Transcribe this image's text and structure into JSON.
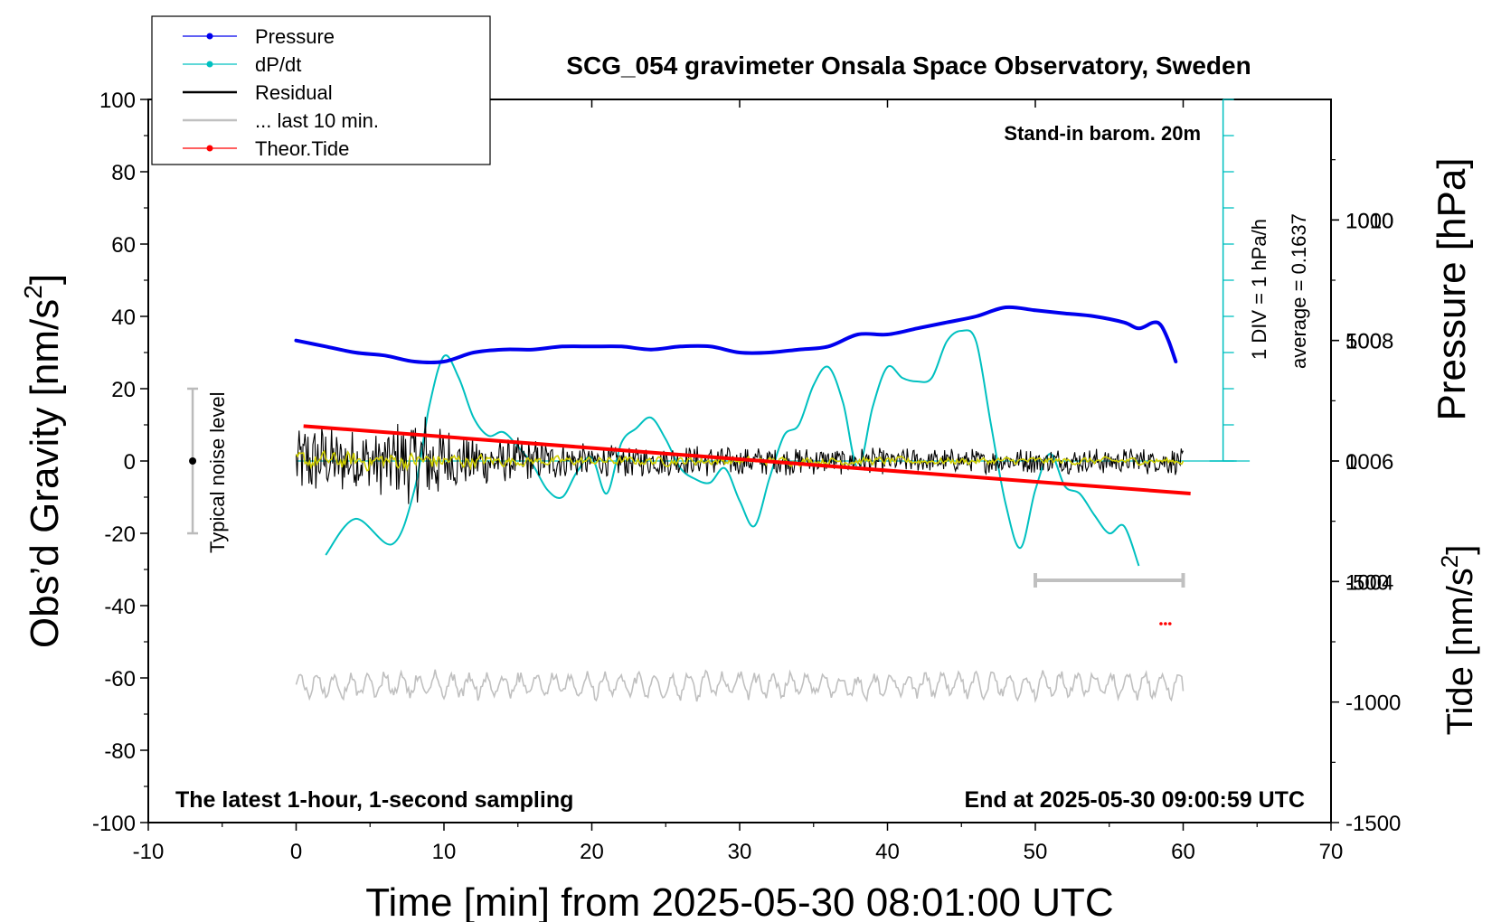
{
  "chart_data": {
    "type": "line",
    "title": "SCG_054 gravimeter Onsala Space Observatory, Sweden",
    "xlabel": "Time [min] from 2025-05-30 08:01:00 UTC",
    "ylabel_left_main": "Obs’d Gravity [nm/s",
    "ylabel_left_exp": "2",
    "ylabel_left_close": "]",
    "ylabel_right_pressure": "Pressure [hPa]",
    "ylabel_right_tide_main": "Tide [nm/s",
    "ylabel_right_tide_exp": "2",
    "ylabel_right_tide_close": "]",
    "xlim": [
      -10,
      70
    ],
    "ylim_left": [
      -100,
      100
    ],
    "ylim_pressure": [
      1000,
      1012
    ],
    "ylim_tide": [
      -1500,
      1500
    ],
    "x_ticks": [
      "-10",
      "0",
      "10",
      "20",
      "30",
      "40",
      "50",
      "60",
      "70"
    ],
    "y_left_ticks": [
      "100",
      "80",
      "60",
      "40",
      "20",
      "0",
      "-20",
      "-40",
      "-60",
      "-80",
      "-100"
    ],
    "pressure_ticks": [
      "1010",
      "1008",
      "1006",
      "1004"
    ],
    "tide_ticks": [
      "1000",
      "500",
      "0",
      "-500",
      "-1000",
      "-1500"
    ],
    "annotations": {
      "barometer": "Stand-in barom. 20m",
      "sampling": "The latest 1-hour, 1-second sampling",
      "end_time": "End at 2025-05-30 09:00:59 UTC",
      "div_label": "1 DIV = 1 hPa/h",
      "average_label": "average = 0.1637",
      "noise_label": "Typical noise level"
    },
    "legend": {
      "position": "top-left",
      "entries": [
        {
          "label": "Pressure",
          "color": "#0000ee",
          "marker": true
        },
        {
          "label": "dP/dt",
          "color": "#00c0c0",
          "marker": true
        },
        {
          "label": "Residual",
          "color": "#000000",
          "marker": false
        },
        {
          "label": "... last 10 min.",
          "color": "#c0c0c0",
          "marker": false
        },
        {
          "label": "Theor.Tide",
          "color": "#ff0000",
          "marker": true
        }
      ]
    },
    "series": [
      {
        "name": "Pressure",
        "axis": "pressure_hPa",
        "color": "#0000ee",
        "x": [
          0,
          2,
          4,
          6,
          8,
          10,
          12,
          14,
          16,
          18,
          20,
          22,
          24,
          26,
          28,
          30,
          32,
          34,
          36,
          38,
          40,
          42,
          44,
          46,
          48,
          50,
          52,
          54,
          56,
          57,
          58,
          58.5,
          59,
          59.5
        ],
        "y": [
          1008.0,
          1007.9,
          1007.8,
          1007.75,
          1007.65,
          1007.65,
          1007.8,
          1007.85,
          1007.85,
          1007.9,
          1007.9,
          1007.9,
          1007.85,
          1007.9,
          1007.9,
          1007.8,
          1007.8,
          1007.85,
          1007.9,
          1008.1,
          1008.1,
          1008.2,
          1008.3,
          1008.4,
          1008.55,
          1008.5,
          1008.45,
          1008.4,
          1008.3,
          1008.2,
          1008.3,
          1008.25,
          1008.0,
          1007.65
        ]
      },
      {
        "name": "dP/dt",
        "axis": "dpdt_div",
        "color": "#00c0c0",
        "baseline": 50,
        "x": [
          2,
          4,
          6.5,
          8,
          9,
          10,
          11,
          12,
          13,
          14,
          15,
          16,
          17,
          18,
          19,
          20,
          21,
          22,
          23,
          24,
          25,
          26,
          27,
          28,
          29,
          30,
          31,
          32,
          33,
          34,
          35,
          36,
          37,
          38,
          39,
          40,
          41,
          42,
          43,
          44,
          45,
          46,
          47,
          48,
          49,
          50,
          51,
          52,
          53,
          54,
          55,
          56,
          57
        ],
        "y": [
          24,
          34,
          27,
          42,
          65,
          79,
          73,
          62,
          57,
          58,
          54,
          49,
          42,
          40,
          47,
          51,
          41,
          55,
          59,
          62,
          56,
          48,
          45,
          44,
          48,
          39,
          32,
          45,
          57,
          60,
          71,
          76,
          66,
          48,
          65,
          76,
          73,
          72,
          73,
          83,
          86,
          83,
          60,
          38,
          26,
          42,
          52,
          43,
          41,
          35,
          30,
          32,
          21
        ]
      },
      {
        "name": "Residual",
        "axis": "gravity_nm_s2",
        "color": "#000000",
        "amplitude": [
          [
            0,
            12
          ],
          [
            5,
            9
          ],
          [
            9,
            15
          ],
          [
            11,
            8
          ],
          [
            20,
            5
          ],
          [
            35,
            4
          ],
          [
            45,
            3.5
          ],
          [
            60,
            4
          ]
        ]
      },
      {
        "name": "Residual (smoothed)",
        "axis": "gravity_nm_s2",
        "color": "#d0d000",
        "amplitude": [
          [
            0,
            4
          ],
          [
            9,
            4
          ],
          [
            15,
            2
          ],
          [
            60,
            1.5
          ]
        ]
      },
      {
        "name": "... last 10 min.",
        "axis": "gravity_nm_s2",
        "color": "#c0c0c0",
        "offset": -62,
        "amplitude": [
          [
            0,
            3
          ],
          [
            60,
            3
          ]
        ]
      },
      {
        "name": "Theor.Tide",
        "axis": "tide_nm_s2",
        "color": "#ff0000",
        "x": [
          0.5,
          60.5
        ],
        "y": [
          145,
          -135
        ]
      }
    ],
    "noise_bar": {
      "x": -7,
      "center": 0,
      "low": -20,
      "high": 20
    },
    "last10_bar": {
      "x_start": 50,
      "x_end": 60,
      "y": -33
    }
  }
}
